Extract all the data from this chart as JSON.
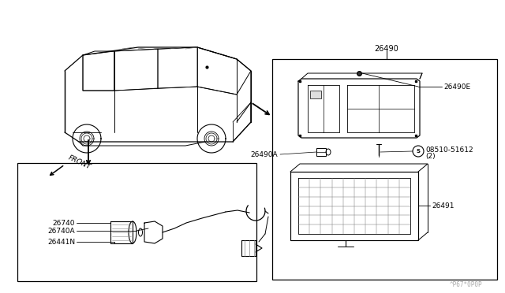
{
  "bg_color": "#ffffff",
  "line_color": "#000000",
  "gray": "#888888",
  "label_26490": "26490",
  "label_26490E": "26490E",
  "label_08510": "08510-51612",
  "label_08510b": "(2)",
  "label_26490A": "26490A",
  "label_26491": "26491",
  "label_26740": "26740",
  "label_26740A": "26740A",
  "label_26441N": "26441N",
  "label_FRONT": "FRONT",
  "watermark": "^P67*0P0P",
  "fs": 6.5,
  "fs_title": 7.0
}
